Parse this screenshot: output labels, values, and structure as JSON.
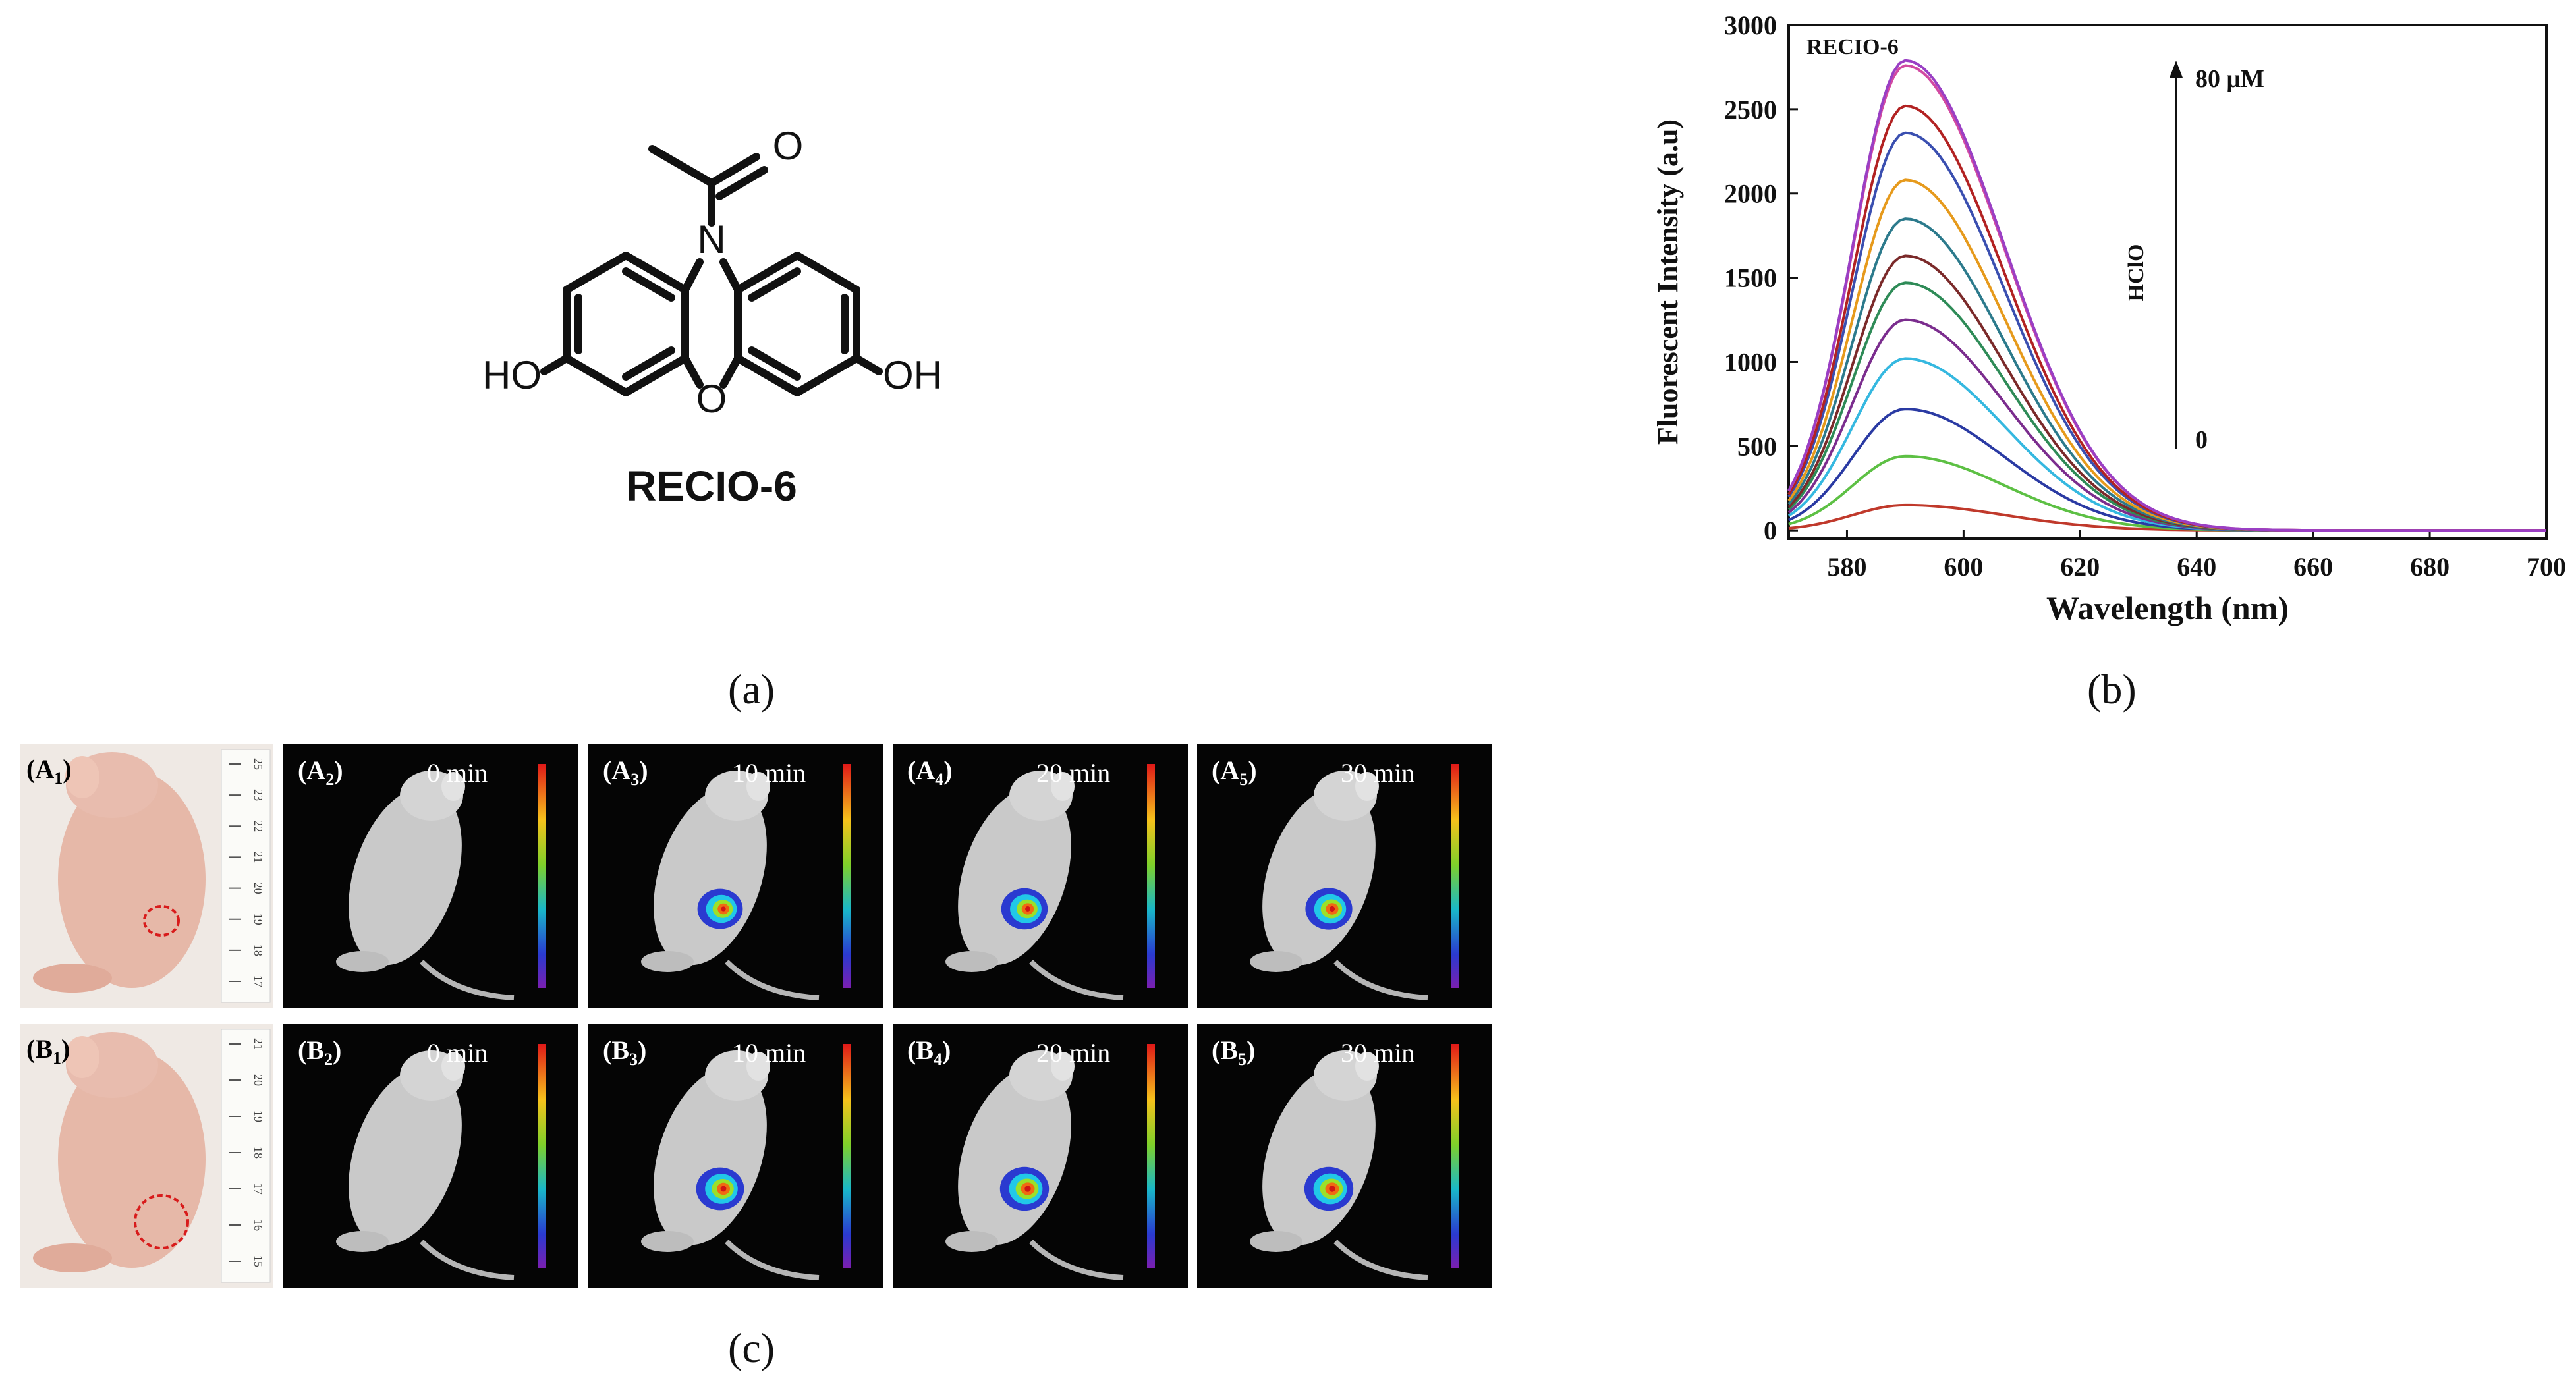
{
  "panel_a": {
    "caption": "(a)",
    "compound_name": "RECIO-6",
    "atoms": {
      "n": "N",
      "o_ring": "O",
      "o_carbonyl": "O",
      "hydroxyl_left": "HO",
      "hydroxyl_right": "OH"
    }
  },
  "panel_b": {
    "caption": "(b)",
    "annotations": {
      "top": "80 μM",
      "bottom": "0",
      "arrow_label": "HClO"
    },
    "chart_data": {
      "type": "line",
      "title": "RECIO-6",
      "xlabel": "Wavelength (nm)",
      "ylabel": "Fluorescent Intensity (a.u)",
      "xlim": [
        570,
        700
      ],
      "ylim": [
        -50,
        3000
      ],
      "xticks": [
        580,
        600,
        620,
        640,
        660,
        680,
        700
      ],
      "yticks": [
        0,
        500,
        1000,
        1500,
        2000,
        2500,
        3000
      ],
      "grid": false,
      "peak_wavelength": 590,
      "series": [
        {
          "color": "#c0392b",
          "peak": 150
        },
        {
          "color": "#5dc044",
          "peak": 440
        },
        {
          "color": "#2a3aa3",
          "peak": 720
        },
        {
          "color": "#35b8e0",
          "peak": 1020
        },
        {
          "color": "#7b2d8e",
          "peak": 1250
        },
        {
          "color": "#2e8b57",
          "peak": 1470
        },
        {
          "color": "#7b2a2a",
          "peak": 1630
        },
        {
          "color": "#2c7a8c",
          "peak": 1850
        },
        {
          "color": "#e69a1c",
          "peak": 2080
        },
        {
          "color": "#3a4fb0",
          "peak": 2360
        },
        {
          "color": "#b22222",
          "peak": 2520
        },
        {
          "color": "#d24aa2",
          "peak": 2760
        },
        {
          "color": "#9a3fc4",
          "peak": 2790
        }
      ]
    }
  },
  "panel_c": {
    "caption": "(c)",
    "rows": [
      {
        "photo_label": "A",
        "photo_sub": "1",
        "ruler_ticks": [
          "25",
          "23",
          "22",
          "21",
          "20",
          "19",
          "18",
          "17"
        ],
        "frames": [
          {
            "label": "A",
            "sub": "2",
            "time": "0 min",
            "signal": 0
          },
          {
            "label": "A",
            "sub": "3",
            "time": "10 min",
            "signal": 0.55
          },
          {
            "label": "A",
            "sub": "4",
            "time": "20 min",
            "signal": 0.65
          },
          {
            "label": "A",
            "sub": "5",
            "time": "30 min",
            "signal": 0.7
          }
        ]
      },
      {
        "photo_label": "B",
        "photo_sub": "1",
        "ruler_ticks": [
          "21",
          "20",
          "19",
          "18",
          "17",
          "16",
          "15"
        ],
        "frames": [
          {
            "label": "B",
            "sub": "2",
            "time": "0 min",
            "signal": 0
          },
          {
            "label": "B",
            "sub": "3",
            "time": "10 min",
            "signal": 0.8
          },
          {
            "label": "B",
            "sub": "4",
            "time": "20 min",
            "signal": 0.9
          },
          {
            "label": "B",
            "sub": "5",
            "time": "30 min",
            "signal": 0.9
          }
        ]
      }
    ]
  }
}
